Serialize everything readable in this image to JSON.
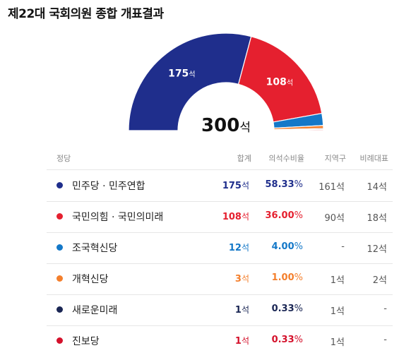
{
  "title": "제22대 국회의원 종합 개표결과",
  "total": {
    "value": "300",
    "unit": "석"
  },
  "columns": [
    "정당",
    "합계",
    "의석수비율",
    "지역구",
    "비례대표"
  ],
  "parties": [
    {
      "name": "민주당 · 민주연합",
      "color": "#1f2e8c",
      "seats": "175",
      "unit": "석",
      "pct": "58.33",
      "pct_unit": "%",
      "district": "161석",
      "proportional": "14석"
    },
    {
      "name": "국민의힘 · 국민의미래",
      "color": "#e5202f",
      "seats": "108",
      "unit": "석",
      "pct": "36.00",
      "pct_unit": "%",
      "district": "90석",
      "proportional": "18석"
    },
    {
      "name": "조국혁신당",
      "color": "#1478c8",
      "seats": "12",
      "unit": "석",
      "pct": "4.00",
      "pct_unit": "%",
      "district": "-",
      "proportional": "12석"
    },
    {
      "name": "개혁신당",
      "color": "#f47f2c",
      "seats": "3",
      "unit": "석",
      "pct": "1.00",
      "pct_unit": "%",
      "district": "1석",
      "proportional": "2석"
    },
    {
      "name": "새로운미래",
      "color": "#1a2654",
      "seats": "1",
      "unit": "석",
      "pct": "0.33",
      "pct_unit": "%",
      "district": "1석",
      "proportional": "-"
    },
    {
      "name": "진보당",
      "color": "#d4112b",
      "seats": "1",
      "unit": "석",
      "pct": "0.33",
      "pct_unit": "%",
      "district": "1석",
      "proportional": "-"
    }
  ],
  "chart_data": {
    "type": "pie",
    "shape": "half-donut",
    "total": 300,
    "categories": [
      "민주당 · 민주연합",
      "국민의힘 · 국민의미래",
      "조국혁신당",
      "개혁신당",
      "새로운미래",
      "진보당"
    ],
    "values": [
      175,
      108,
      12,
      3,
      1,
      1
    ],
    "colors": [
      "#1f2e8c",
      "#e5202f",
      "#1478c8",
      "#f47f2c",
      "#1a2654",
      "#d4112b"
    ],
    "data_labels": [
      {
        "value": "175",
        "unit": "석"
      },
      {
        "value": "108",
        "unit": "석"
      }
    ]
  }
}
